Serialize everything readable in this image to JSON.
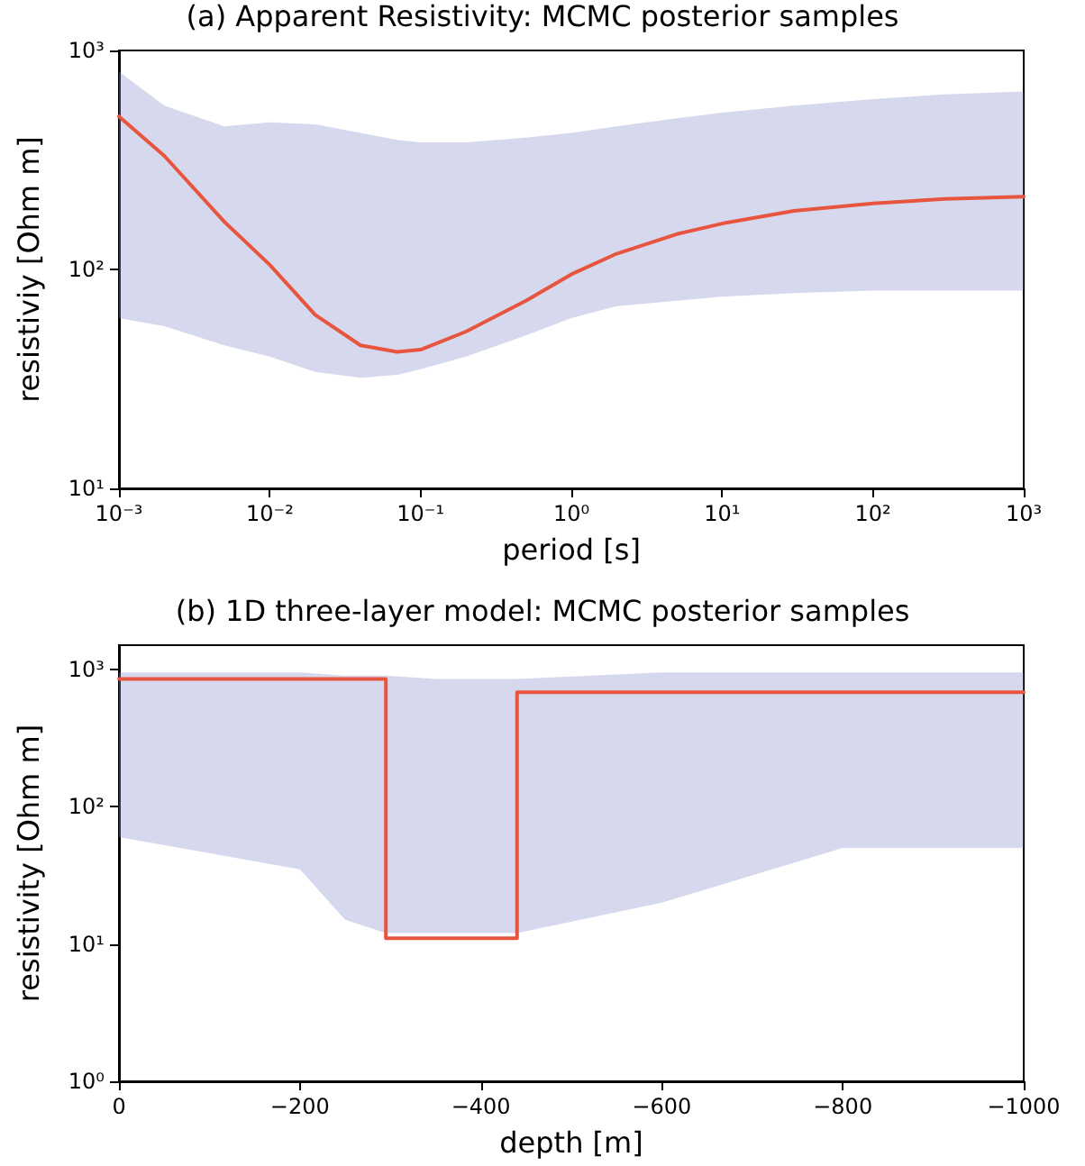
{
  "chart_data": [
    {
      "type": "line",
      "title": "(a) Apparent Resistivity: MCMC posterior samples",
      "xlabel": "period [s]",
      "ylabel": "resistiviy [Ohm m]",
      "log": "xy",
      "xlim": [
        0.001,
        1000
      ],
      "ylim": [
        10,
        1000
      ],
      "xticks": [
        {
          "value": 0.001,
          "label": "10⁻³"
        },
        {
          "value": 0.01,
          "label": "10⁻²"
        },
        {
          "value": 0.1,
          "label": "10⁻¹"
        },
        {
          "value": 1,
          "label": "10⁰"
        },
        {
          "value": 10,
          "label": "10¹"
        },
        {
          "value": 100,
          "label": "10²"
        },
        {
          "value": 1000,
          "label": "10³"
        }
      ],
      "yticks": [
        {
          "value": 10,
          "label": "10¹"
        },
        {
          "value": 100,
          "label": "10²"
        },
        {
          "value": 1000,
          "label": "10³"
        }
      ],
      "grid": false,
      "marker": "none",
      "line_style": "solid",
      "series": [
        {
          "color": "#e8553f",
          "x": [
            0.001,
            0.002,
            0.005,
            0.01,
            0.02,
            0.04,
            0.07,
            0.1,
            0.2,
            0.5,
            1,
            2,
            5,
            10,
            30,
            100,
            300,
            1000
          ],
          "values": [
            500,
            330,
            165,
            105,
            62,
            45,
            42,
            43,
            52,
            72,
            95,
            118,
            145,
            162,
            185,
            200,
            210,
            215
          ],
          "lower": [
            60,
            55,
            45,
            40,
            34,
            32,
            33,
            35,
            40,
            50,
            60,
            68,
            72,
            75,
            78,
            80,
            80,
            80
          ],
          "upper": [
            800,
            560,
            450,
            470,
            460,
            420,
            390,
            380,
            380,
            400,
            420,
            450,
            490,
            520,
            560,
            600,
            630,
            650
          ]
        }
      ]
    },
    {
      "type": "step",
      "title": "(b) 1D three-layer model: MCMC posterior samples",
      "xlabel": "depth [m]",
      "ylabel": "resistivity [Ohm m]",
      "log": "y",
      "xlim": [
        0,
        -1000
      ],
      "ylim": [
        1,
        1500
      ],
      "xticks": [
        0,
        {
          "value": -200,
          "label": "−200"
        },
        {
          "value": -400,
          "label": "−400"
        },
        {
          "value": -600,
          "label": "−600"
        },
        {
          "value": -800,
          "label": "−800"
        },
        {
          "value": -1000,
          "label": "−1000"
        }
      ],
      "yticks": [
        {
          "value": 1,
          "label": "10⁰"
        },
        {
          "value": 10,
          "label": "10¹"
        },
        {
          "value": 100,
          "label": "10²"
        },
        {
          "value": 1000,
          "label": "10³"
        }
      ],
      "grid": false,
      "marker": "none",
      "line_style": "solid",
      "series": [
        {
          "color": "#e8553f",
          "x": [
            0,
            -200,
            -250,
            -295,
            -350,
            -440,
            -600,
            -800,
            -1000
          ],
          "values": [
            850,
            850,
            850,
            11,
            11,
            680,
            680,
            680,
            680
          ],
          "lower": [
            60,
            35,
            15,
            12,
            12,
            12,
            20,
            50,
            50
          ],
          "upper": [
            950,
            950,
            900,
            900,
            850,
            850,
            950,
            950,
            950
          ]
        }
      ]
    }
  ]
}
